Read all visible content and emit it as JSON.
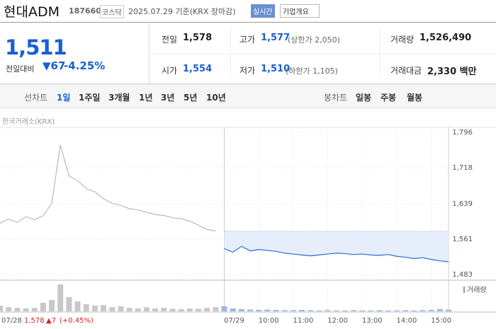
{
  "header": {
    "name": "현대ADM",
    "code": "187660",
    "market": "코스닥",
    "date": "2025.07.29 기준(KRX 장마감)",
    "realtime_button": "실시간",
    "company_button": "기업개요"
  },
  "price": {
    "current": "1,511",
    "change_label": "전일대비",
    "change": "67",
    "change_rate": "-4.25%"
  },
  "stats": [
    {
      "label": "전일",
      "value": "1,578"
    },
    {
      "label": "고가",
      "value": "1,577",
      "note": "(상한가 2,050)"
    },
    {
      "label": "거래량",
      "value": "1,526,490"
    },
    {
      "label": "시가",
      "value": "1,554"
    },
    {
      "label": "저가",
      "value": "1,510",
      "note": "(하한가 1,105)"
    },
    {
      "label": "거래대금",
      "value": "2,330 백만"
    }
  ],
  "tabs": {
    "line_label": "선차트",
    "line": [
      "1일",
      "1주일",
      "3개월",
      "1년",
      "3년",
      "5년",
      "10년"
    ],
    "candle_label": "봉차트",
    "candle": [
      "일봉",
      "주봉",
      "월봉"
    ]
  },
  "source": "한국거래소(KRX)",
  "prev_day": {
    "price": "1,578",
    "change": "▲7",
    "rate": "(+0.45%)"
  },
  "chart_data": [
    {
      "type": "line",
      "xlim": [
        0,
        780
      ],
      "xticks": [
        {
          "value": 0,
          "label": "07/28"
        },
        {
          "value": 390,
          "label": "07/29"
        },
        {
          "value": 450,
          "label": "10:00"
        },
        {
          "value": 510,
          "label": "11:00"
        },
        {
          "value": 570,
          "label": "12:00"
        },
        {
          "value": 630,
          "label": "13:00"
        },
        {
          "value": 690,
          "label": "14:00"
        },
        {
          "value": 750,
          "label": "15:00"
        }
      ],
      "ylim": [
        1472,
        1807
      ],
      "yticks": [
        {
          "value": 1796,
          "label": "1,796"
        },
        {
          "value": 1718,
          "label": "1,718"
        },
        {
          "value": 1639,
          "label": "1,639"
        },
        {
          "value": 1561,
          "label": "1,561"
        },
        {
          "value": 1483,
          "label": "1,483"
        }
      ],
      "reference_line": 1578,
      "grid": true,
      "series": [
        {
          "color": "#b9b9b9",
          "x": [
            0,
            15,
            30,
            45,
            60,
            75,
            90,
            105,
            120,
            135,
            150,
            165,
            180,
            195,
            210,
            225,
            240,
            255,
            270,
            285,
            300,
            315,
            330,
            345,
            360,
            375
          ],
          "values": [
            1596,
            1605,
            1598,
            1610,
            1604,
            1612,
            1640,
            1768,
            1700,
            1690,
            1672,
            1665,
            1650,
            1640,
            1635,
            1628,
            1625,
            1620,
            1615,
            1613,
            1608,
            1606,
            1600,
            1592,
            1582,
            1579
          ]
        },
        {
          "color": "#2b6cd4",
          "fill": "#e6eefb",
          "x": [
            390,
            405,
            420,
            435,
            450,
            465,
            480,
            495,
            510,
            525,
            540,
            555,
            570,
            585,
            600,
            615,
            630,
            645,
            660,
            675,
            690,
            705,
            720,
            735,
            750,
            765,
            780
          ],
          "values": [
            1540,
            1532,
            1545,
            1535,
            1538,
            1536,
            1534,
            1530,
            1528,
            1526,
            1524,
            1526,
            1528,
            1530,
            1529,
            1527,
            1528,
            1526,
            1525,
            1527,
            1523,
            1521,
            1518,
            1520,
            1516,
            1513,
            1511
          ]
        }
      ]
    },
    {
      "type": "bar",
      "legend": "거래량",
      "xlim": [
        0,
        780
      ],
      "ylim": [
        0,
        100000
      ],
      "series": [
        {
          "color": "#c8c8c8",
          "x": [
            0,
            15,
            30,
            45,
            60,
            75,
            90,
            105,
            120,
            135,
            150,
            165,
            180,
            195,
            210,
            225,
            240,
            255,
            270,
            285,
            300,
            315,
            330,
            345,
            360,
            375
          ],
          "values": [
            20000,
            15000,
            12000,
            10000,
            12000,
            30000,
            40000,
            95000,
            50000,
            35000,
            25000,
            20000,
            22000,
            15000,
            18000,
            12000,
            10000,
            14000,
            10000,
            12000,
            9000,
            8000,
            10000,
            9000,
            12000,
            15000
          ]
        },
        {
          "color": "#9db7e3",
          "x": [
            390,
            405,
            420,
            435,
            450,
            465,
            480,
            495,
            510,
            525,
            540,
            555,
            570,
            585,
            600,
            615,
            630,
            645,
            660,
            675,
            690,
            705,
            720,
            735,
            750,
            765,
            780
          ],
          "values": [
            18000,
            10000,
            8000,
            6000,
            5000,
            6000,
            5000,
            4000,
            4000,
            5000,
            4000,
            3000,
            4000,
            3000,
            3000,
            4000,
            3000,
            3000,
            4000,
            3000,
            3000,
            4000,
            3000,
            4000,
            5000,
            8000,
            6000
          ]
        }
      ]
    }
  ]
}
